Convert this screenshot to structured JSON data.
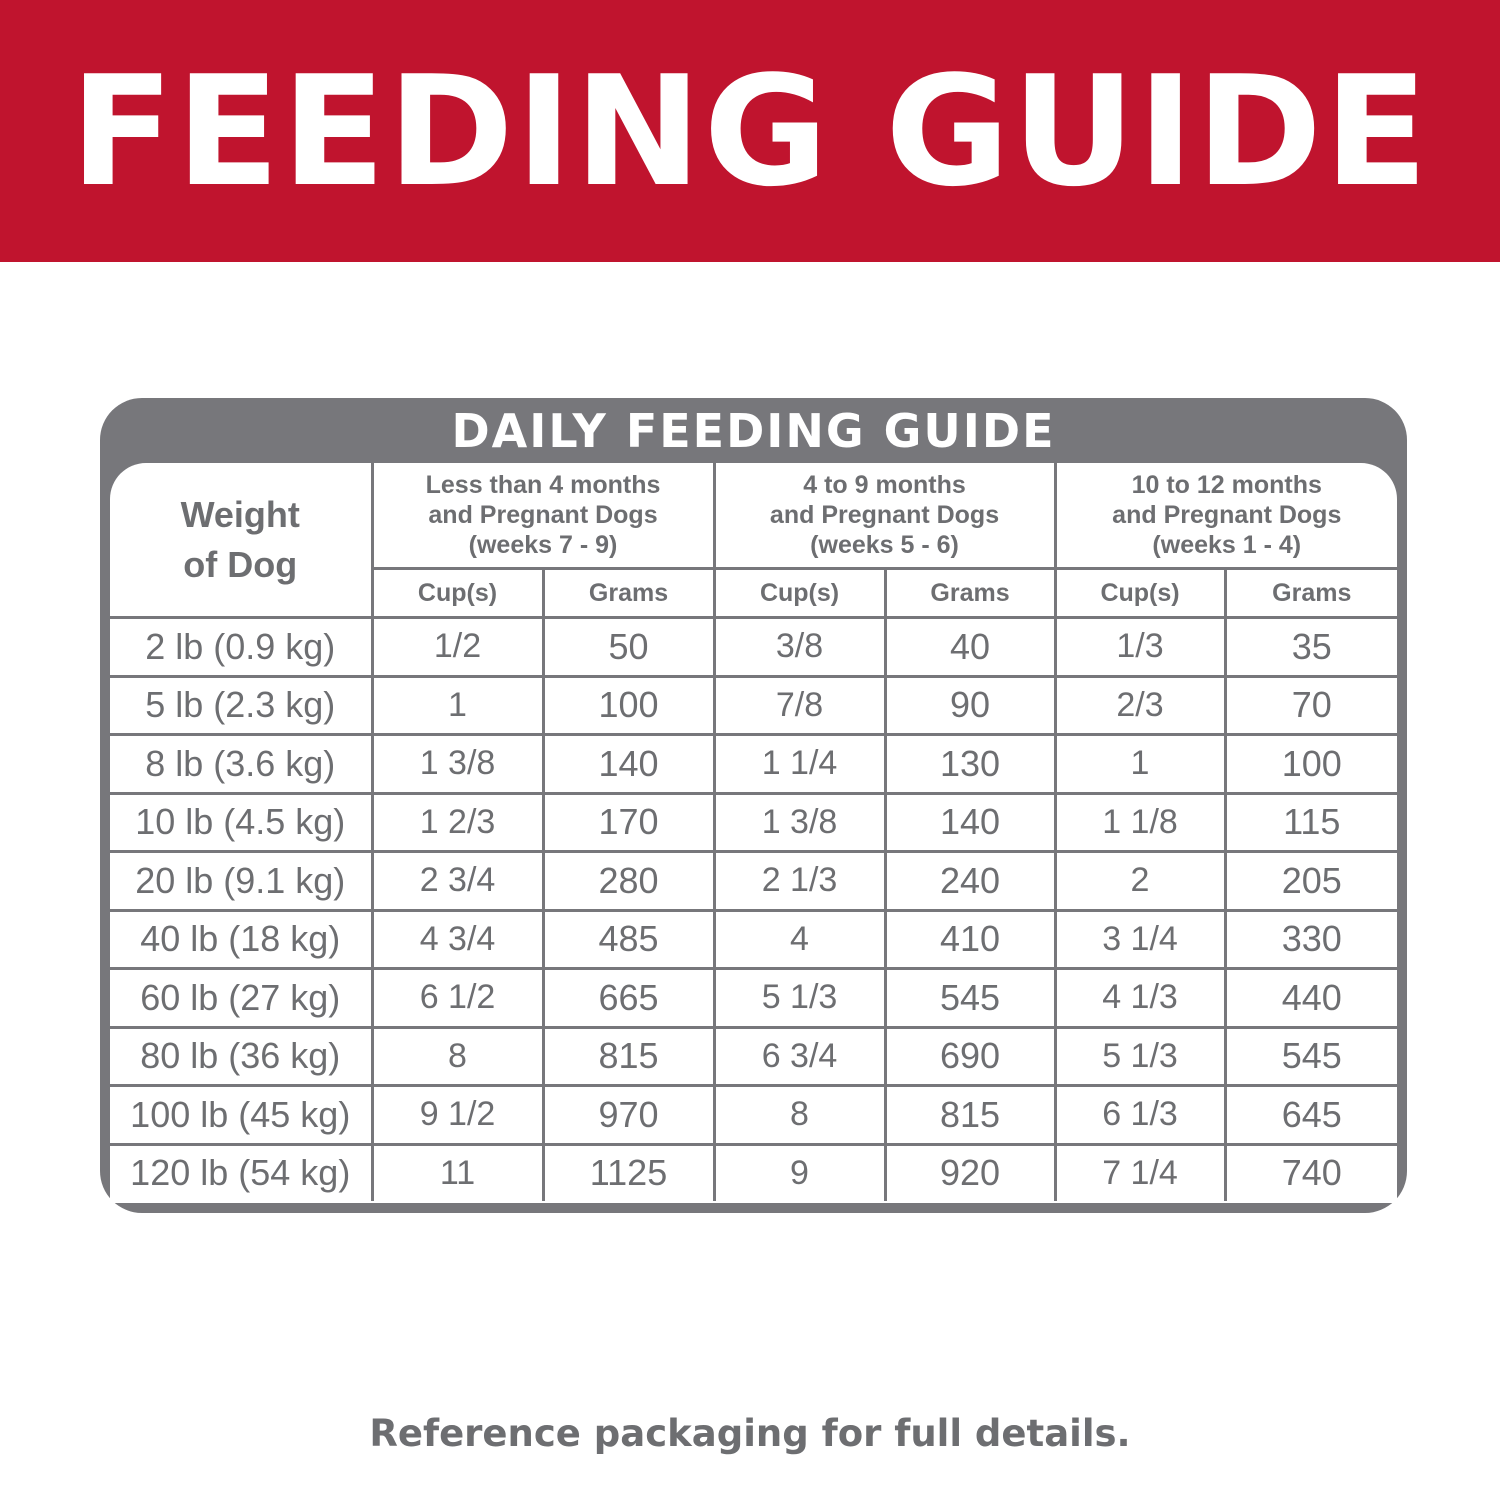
{
  "banner": {
    "title": "FEEDING GUIDE",
    "color": "#c0142e"
  },
  "guide": {
    "title": "DAILY FEEDING GUIDE",
    "weight_header": [
      "Weight",
      "of Dog"
    ],
    "groups": [
      {
        "lines": [
          "Less than 4 months",
          "and Pregnant Dogs",
          "(weeks 7 - 9)"
        ]
      },
      {
        "lines": [
          "4 to 9 months",
          "and Pregnant Dogs",
          "(weeks 5 - 6)"
        ]
      },
      {
        "lines": [
          "10 to 12 months",
          "and Pregnant Dogs",
          "(weeks 1 - 4)"
        ]
      }
    ],
    "sub_headers": [
      "Cup(s)",
      "Grams",
      "Cup(s)",
      "Grams",
      "Cup(s)",
      "Grams"
    ],
    "rows": [
      [
        "2 lb (0.9 kg)",
        "1/2",
        "50",
        "3/8",
        "40",
        "1/3",
        "35"
      ],
      [
        "5 lb (2.3 kg)",
        "1",
        "100",
        "7/8",
        "90",
        "2/3",
        "70"
      ],
      [
        "8 lb (3.6 kg)",
        "1 3/8",
        "140",
        "1 1/4",
        "130",
        "1",
        "100"
      ],
      [
        "10 lb (4.5 kg)",
        "1 2/3",
        "170",
        "1 3/8",
        "140",
        "1 1/8",
        "115"
      ],
      [
        "20 lb (9.1 kg)",
        "2 3/4",
        "280",
        "2 1/3",
        "240",
        "2",
        "205"
      ],
      [
        "40 lb (18 kg)",
        "4 3/4",
        "485",
        "4",
        "410",
        "3 1/4",
        "330"
      ],
      [
        "60 lb (27 kg)",
        "6 1/2",
        "665",
        "5 1/3",
        "545",
        "4 1/3",
        "440"
      ],
      [
        "80 lb (36 kg)",
        "8",
        "815",
        "6 3/4",
        "690",
        "5 1/3",
        "545"
      ],
      [
        "100 lb (45 kg)",
        "9 1/2",
        "970",
        "8",
        "815",
        "6 1/3",
        "645"
      ],
      [
        "120 lb (54 kg)",
        "11",
        "1125",
        "9",
        "920",
        "7 1/4",
        "740"
      ]
    ]
  },
  "footer": "Reference packaging for full details."
}
